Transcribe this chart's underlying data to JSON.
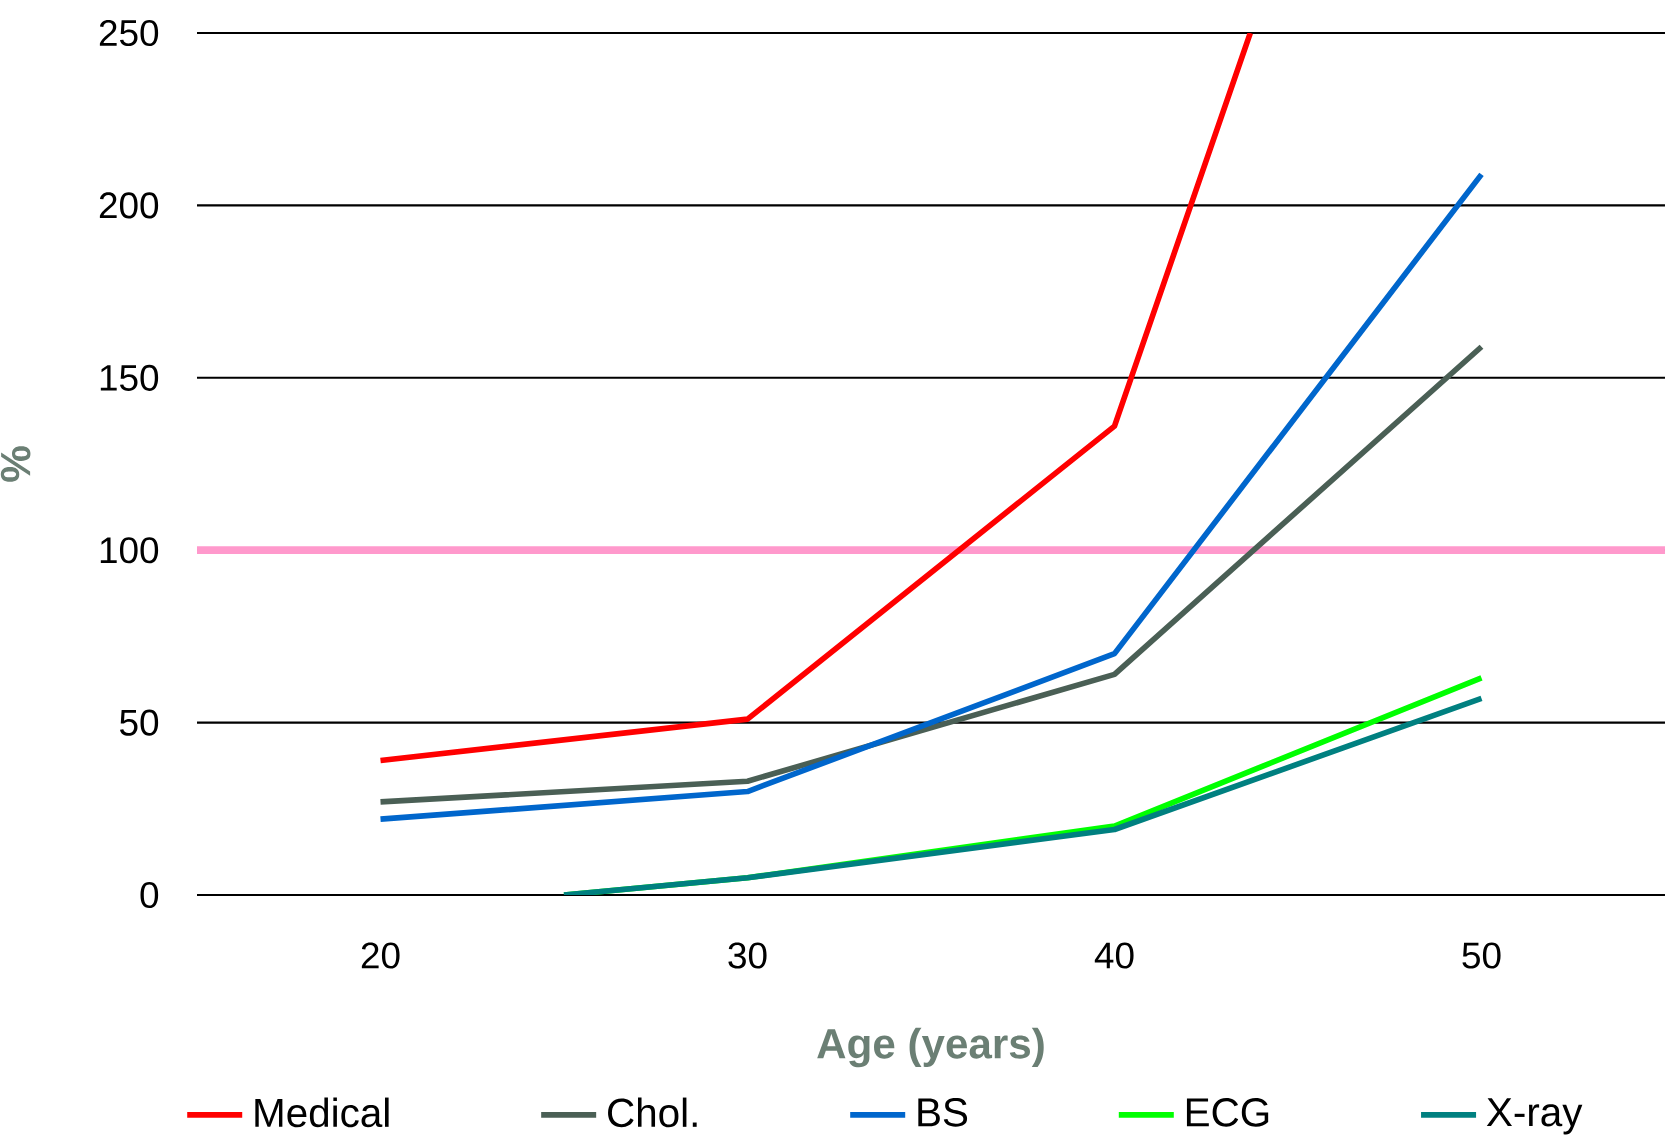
{
  "chart_data": {
    "type": "line",
    "xlabel": "Age (years)",
    "ylabel": "%",
    "x": [
      20,
      30,
      40,
      50
    ],
    "xlim": [
      15,
      55
    ],
    "xticks": [
      20,
      30,
      40,
      50
    ],
    "ylim": [
      0,
      250
    ],
    "yticks": [
      0,
      50,
      100,
      150,
      200,
      250
    ],
    "grid": "y",
    "legend": "bottom",
    "series": [
      {
        "name": "Medical",
        "color": "#ff0000",
        "x": [
          20,
          30,
          40,
          43.7
        ],
        "values": [
          39,
          51,
          136,
          250
        ]
      },
      {
        "name": "Chol.",
        "color": "#4a5f55",
        "values": [
          27,
          33,
          64,
          159
        ]
      },
      {
        "name": "BS",
        "color": "#0066cc",
        "values": [
          22,
          30,
          70,
          209
        ]
      },
      {
        "name": "ECG",
        "color": "#00ff00",
        "x": [
          25,
          30,
          40,
          50
        ],
        "values": [
          0,
          5,
          20,
          63
        ]
      },
      {
        "name": "X-ray",
        "color": "#008080",
        "x": [
          25,
          30,
          40,
          50
        ],
        "values": [
          0,
          5,
          19,
          57
        ]
      }
    ],
    "ref_lines": [
      {
        "axis": "y",
        "value": 100,
        "color": "#ff99cc"
      }
    ]
  }
}
